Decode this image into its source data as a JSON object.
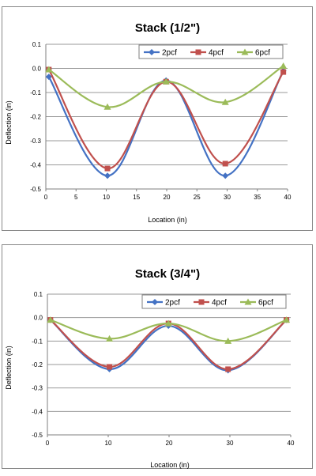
{
  "colors": {
    "2pcf": "#4472C4",
    "4pcf": "#C0504D",
    "6pcf": "#9BBB59",
    "grid": "#9a9a9a"
  },
  "chart_data": [
    {
      "type": "line",
      "title": "Stack (1/2\")",
      "xlabel": "Location (in)",
      "ylabel": "Deflection (in)",
      "xlim": [
        0,
        40
      ],
      "ylim": [
        -0.5,
        0.1
      ],
      "xticks": [
        0,
        5,
        10,
        15,
        20,
        25,
        30,
        35,
        40
      ],
      "yticks": [
        0.1,
        0.0,
        -0.1,
        -0.2,
        -0.3,
        -0.4,
        -0.5
      ],
      "xtick_labels": [
        "0",
        "5",
        "10",
        "15",
        "20",
        "25",
        "30",
        "35",
        "40"
      ],
      "ytick_labels": [
        "0.1",
        "0.0",
        "-0.1",
        "-0.2",
        "-0.3",
        "-0.4",
        "-0.5"
      ],
      "grid": "horizontal",
      "legend": "top-right",
      "x": [
        0.5,
        10.2,
        19.9,
        29.7,
        39.3
      ],
      "series": [
        {
          "name": "2pcf",
          "marker": "diamond",
          "values": [
            -0.035,
            -0.445,
            -0.05,
            -0.445,
            -0.01
          ]
        },
        {
          "name": "4pcf",
          "marker": "square",
          "values": [
            -0.005,
            -0.415,
            -0.055,
            -0.395,
            -0.015
          ]
        },
        {
          "name": "6pcf",
          "marker": "triangle",
          "values": [
            -0.005,
            -0.16,
            -0.055,
            -0.14,
            0.01
          ]
        }
      ]
    },
    {
      "type": "line",
      "title": "Stack (3/4\")",
      "xlabel": "Location (in)",
      "ylabel": "Deflection (in)",
      "xlim": [
        0,
        40
      ],
      "ylim": [
        -0.5,
        0.1
      ],
      "xticks": [
        0,
        10,
        20,
        30,
        40
      ],
      "yticks": [
        0.1,
        0.0,
        -0.1,
        -0.2,
        -0.3,
        -0.4,
        -0.5
      ],
      "xtick_labels": [
        "0",
        "10",
        "20",
        "30",
        "40"
      ],
      "ytick_labels": [
        "0.1",
        "0.0",
        "-0.1",
        "-0.2",
        "-0.3",
        "-0.4",
        "-0.5"
      ],
      "grid": "horizontal",
      "legend": "top-right",
      "x": [
        0.5,
        10.2,
        19.9,
        29.7,
        39.3
      ],
      "series": [
        {
          "name": "2pcf",
          "marker": "diamond",
          "values": [
            -0.01,
            -0.22,
            -0.035,
            -0.225,
            -0.01
          ]
        },
        {
          "name": "4pcf",
          "marker": "square",
          "values": [
            -0.01,
            -0.21,
            -0.025,
            -0.22,
            -0.01
          ]
        },
        {
          "name": "6pcf",
          "marker": "triangle",
          "values": [
            -0.01,
            -0.09,
            -0.025,
            -0.1,
            -0.01
          ]
        }
      ]
    }
  ]
}
